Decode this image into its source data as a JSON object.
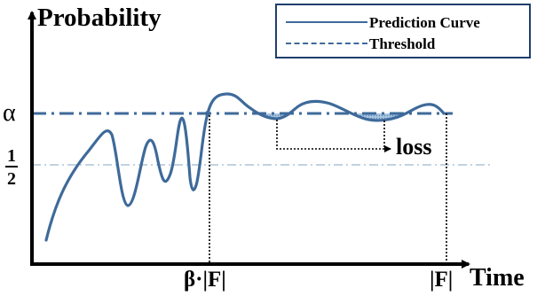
{
  "labels": {
    "y_axis": "Probability",
    "x_axis": "Time",
    "alpha": "α",
    "half_num": "1",
    "half_den": "2",
    "beta_f": "β·|F|",
    "f": "|F|",
    "loss": "loss"
  },
  "legend": {
    "items": [
      {
        "label": "Prediction Curve",
        "style": "solid"
      },
      {
        "label": "Threshold",
        "style": "dash-dot"
      }
    ]
  },
  "colors": {
    "curve": "#3e6a9a",
    "threshold": "#3e6a9a",
    "half_line": "#9fb6cc",
    "loss_fill": "#8fb4d8",
    "axis": "#000000",
    "legend_border": "#1f3f6e"
  }
}
